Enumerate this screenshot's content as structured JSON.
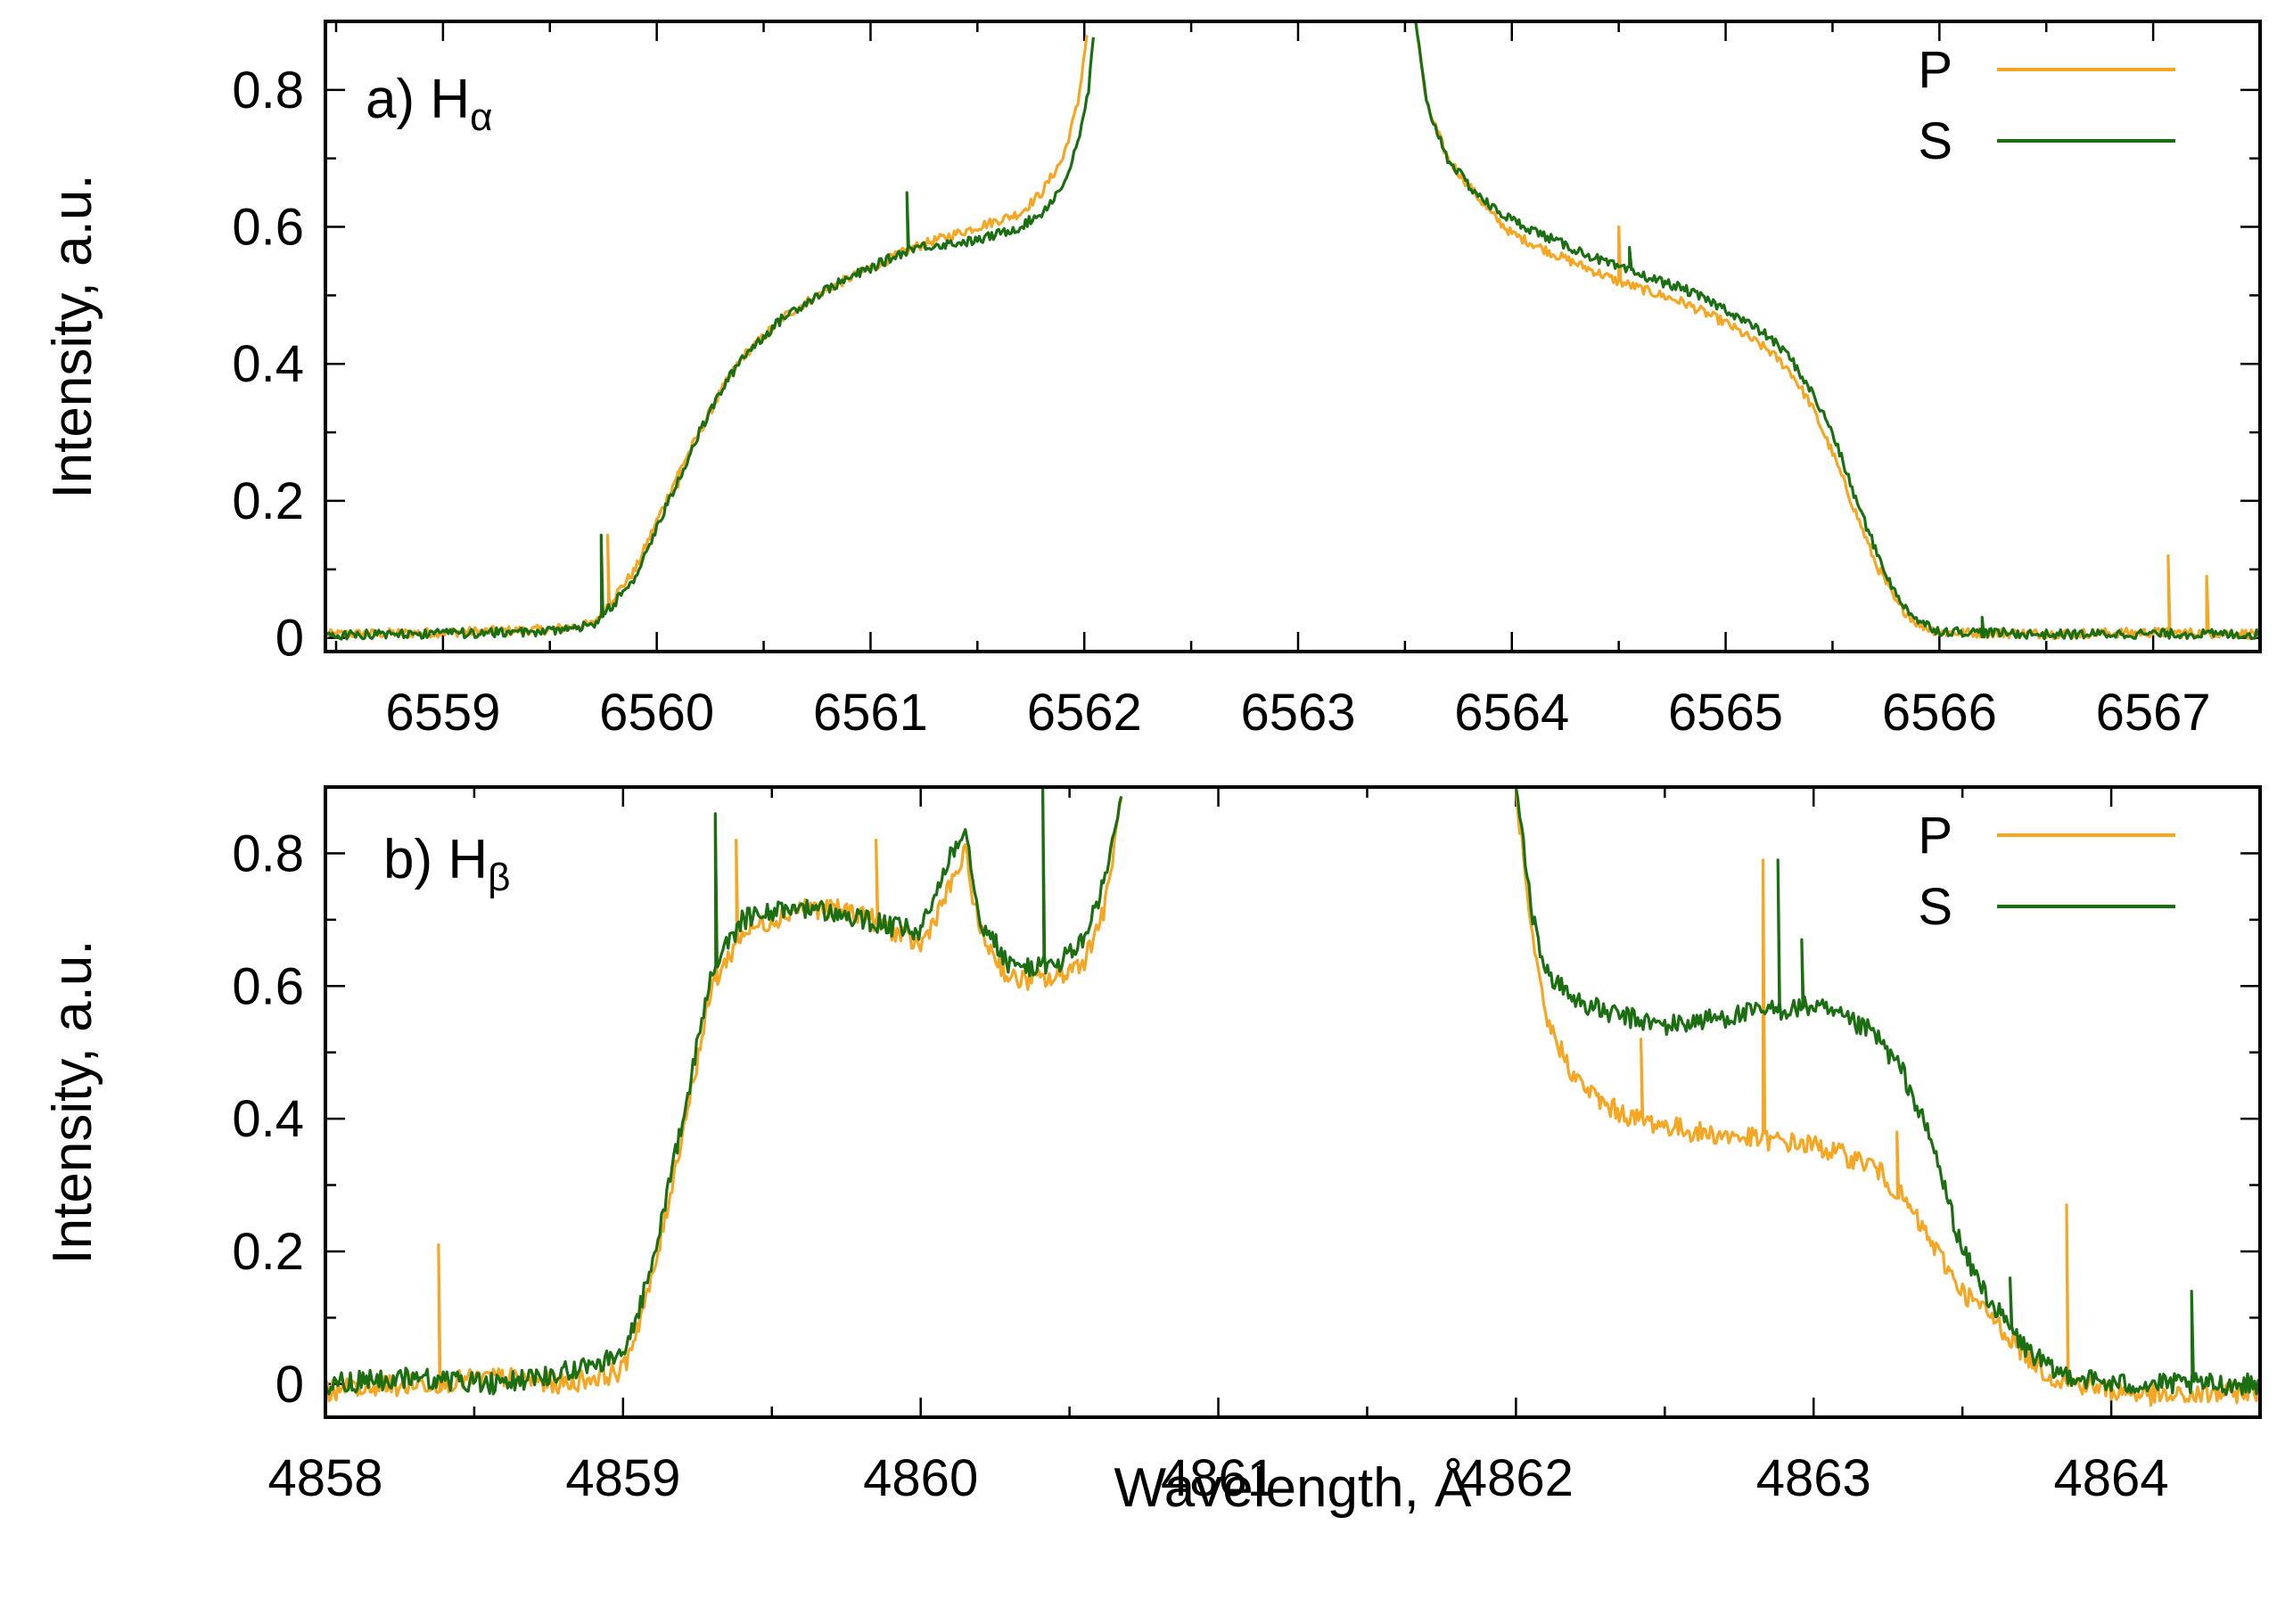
{
  "chart_data": [
    {
      "type": "line",
      "panel_label": {
        "prefix": "a) ",
        "main": "H",
        "subscript": "α"
      },
      "xlabel": "",
      "ylabel": "Intensity, a.u.",
      "xlim": [
        6558.45,
        6567.5
      ],
      "ylim": [
        -0.02,
        0.9
      ],
      "x_ticks": [
        6559,
        6560,
        6561,
        6562,
        6563,
        6564,
        6565,
        6566,
        6567
      ],
      "x_minor_step": 0.5,
      "y_ticks": [
        0,
        0.2,
        0.4,
        0.6,
        0.8
      ],
      "y_tick_labels": [
        "0",
        "0.2",
        "0.4",
        "0.6",
        "0.8"
      ],
      "y_minor_step": 0.1,
      "legend": {
        "placement": "top-right",
        "entries": [
          "P",
          "S"
        ]
      },
      "series": [
        {
          "name": "P",
          "color": "#f5a623",
          "x": [
            6558.45,
            6559.0,
            6559.5,
            6559.7,
            6559.8,
            6559.9,
            6560.0,
            6560.1,
            6560.2,
            6560.3,
            6560.4,
            6560.5,
            6560.6,
            6560.8,
            6561.0,
            6561.2,
            6561.5,
            6561.7,
            6561.8,
            6561.9,
            6561.97,
            6562.02,
            6563.55,
            6563.6,
            6563.7,
            6563.8,
            6563.9,
            6564.0,
            6564.2,
            6564.5,
            6564.8,
            6565.0,
            6565.2,
            6565.3,
            6565.4,
            6565.5,
            6565.6,
            6565.7,
            6565.8,
            6565.9,
            6566.0,
            6566.5,
            6567.0,
            6567.5
          ],
          "y": [
            0.005,
            0.008,
            0.012,
            0.02,
            0.06,
            0.1,
            0.17,
            0.24,
            0.3,
            0.36,
            0.41,
            0.44,
            0.47,
            0.51,
            0.54,
            0.57,
            0.6,
            0.62,
            0.65,
            0.7,
            0.78,
            0.9,
            0.9,
            0.78,
            0.7,
            0.66,
            0.62,
            0.59,
            0.56,
            0.52,
            0.49,
            0.46,
            0.42,
            0.39,
            0.34,
            0.27,
            0.19,
            0.11,
            0.05,
            0.02,
            0.008,
            0.006,
            0.008,
            0.006
          ],
          "spikes": [
            {
              "x": 6559.77,
              "y": 0.15
            },
            {
              "x": 6560.1,
              "y": 0.22
            },
            {
              "x": 6564.5,
              "y": 0.6
            },
            {
              "x": 6567.07,
              "y": 0.12
            },
            {
              "x": 6567.25,
              "y": 0.09
            }
          ]
        },
        {
          "name": "S",
          "color": "#1b6e11",
          "x": [
            6558.45,
            6559.0,
            6559.5,
            6559.7,
            6559.8,
            6559.9,
            6560.0,
            6560.1,
            6560.2,
            6560.3,
            6560.4,
            6560.5,
            6560.6,
            6560.8,
            6561.0,
            6561.2,
            6561.5,
            6561.7,
            6561.8,
            6561.9,
            6561.97,
            6562.02,
            6562.05,
            6563.55,
            6563.6,
            6563.7,
            6563.8,
            6563.9,
            6564.0,
            6564.2,
            6564.5,
            6564.8,
            6565.0,
            6565.2,
            6565.3,
            6565.4,
            6565.5,
            6565.6,
            6565.7,
            6565.8,
            6565.9,
            6566.0,
            6566.5,
            6567.0,
            6567.5
          ],
          "y": [
            0.005,
            0.006,
            0.01,
            0.018,
            0.05,
            0.09,
            0.16,
            0.23,
            0.3,
            0.36,
            0.41,
            0.44,
            0.47,
            0.51,
            0.54,
            0.57,
            0.58,
            0.6,
            0.62,
            0.66,
            0.72,
            0.8,
            0.9,
            0.9,
            0.78,
            0.7,
            0.66,
            0.63,
            0.61,
            0.58,
            0.54,
            0.51,
            0.48,
            0.44,
            0.41,
            0.36,
            0.3,
            0.21,
            0.13,
            0.06,
            0.025,
            0.01,
            0.005,
            0.006,
            0.005
          ],
          "spikes": [
            {
              "x": 6559.74,
              "y": 0.15
            },
            {
              "x": 6561.17,
              "y": 0.65
            },
            {
              "x": 6564.55,
              "y": 0.57
            },
            {
              "x": 6566.2,
              "y": 0.03
            }
          ]
        }
      ]
    },
    {
      "type": "line",
      "panel_label": {
        "prefix": "b) ",
        "main": "H",
        "subscript": "β"
      },
      "xlabel": "Wavelength, Å",
      "ylabel": "Intensity, a.u.",
      "xlim": [
        4858.0,
        4864.5
      ],
      "ylim": [
        -0.05,
        0.9
      ],
      "x_ticks": [
        4858,
        4859,
        4860,
        4861,
        4862,
        4863,
        4864
      ],
      "x_minor_step": 0.5,
      "y_ticks": [
        0,
        0.2,
        0.4,
        0.6,
        0.8
      ],
      "y_tick_labels": [
        "0",
        "0.2",
        "0.4",
        "0.6",
        "0.8"
      ],
      "y_minor_step": 0.1,
      "legend": {
        "placement": "top-right",
        "entries": [
          "P",
          "S"
        ]
      },
      "series": [
        {
          "name": "P",
          "color": "#f5a623",
          "x": [
            4858.0,
            4858.3,
            4858.6,
            4858.8,
            4859.0,
            4859.1,
            4859.2,
            4859.3,
            4859.4,
            4859.6,
            4859.8,
            4860.0,
            4860.1,
            4860.15,
            4860.2,
            4860.3,
            4860.45,
            4860.55,
            4860.62,
            4860.68,
            4862.0,
            4862.05,
            4862.1,
            4862.2,
            4862.3,
            4862.4,
            4862.6,
            4862.8,
            4863.0,
            4863.2,
            4863.3,
            4863.4,
            4863.5,
            4863.6,
            4863.7,
            4863.8,
            4864.0,
            4864.2,
            4864.5
          ],
          "y": [
            -0.01,
            0.0,
            0.01,
            0.0,
            0.02,
            0.16,
            0.38,
            0.6,
            0.68,
            0.72,
            0.71,
            0.66,
            0.75,
            0.8,
            0.68,
            0.61,
            0.61,
            0.64,
            0.72,
            0.9,
            0.9,
            0.68,
            0.55,
            0.46,
            0.42,
            0.4,
            0.38,
            0.37,
            0.36,
            0.33,
            0.28,
            0.21,
            0.14,
            0.1,
            0.05,
            0.01,
            -0.01,
            -0.02,
            -0.01
          ],
          "spikes": [
            {
              "x": 4858.38,
              "y": 0.21
            },
            {
              "x": 4859.31,
              "y": 0.85
            },
            {
              "x": 4859.38,
              "y": 0.82
            },
            {
              "x": 4859.85,
              "y": 0.82
            },
            {
              "x": 4862.42,
              "y": 0.52
            },
            {
              "x": 4862.83,
              "y": 0.79
            },
            {
              "x": 4863.28,
              "y": 0.38
            },
            {
              "x": 4863.85,
              "y": 0.27
            }
          ]
        },
        {
          "name": "S",
          "color": "#1b6e11",
          "x": [
            4858.0,
            4858.3,
            4858.6,
            4858.8,
            4859.0,
            4859.1,
            4859.2,
            4859.3,
            4859.4,
            4859.6,
            4859.8,
            4860.0,
            4860.1,
            4860.15,
            4860.2,
            4860.3,
            4860.45,
            4860.55,
            4860.62,
            4860.68,
            4862.0,
            4862.05,
            4862.1,
            4862.2,
            4862.3,
            4862.5,
            4862.8,
            4863.0,
            4863.2,
            4863.3,
            4863.4,
            4863.5,
            4863.6,
            4863.7,
            4863.8,
            4864.0,
            4864.2,
            4864.5
          ],
          "y": [
            0.0,
            0.01,
            0.0,
            0.02,
            0.04,
            0.18,
            0.4,
            0.62,
            0.7,
            0.72,
            0.7,
            0.68,
            0.8,
            0.84,
            0.7,
            0.63,
            0.63,
            0.67,
            0.76,
            0.9,
            0.9,
            0.72,
            0.62,
            0.58,
            0.56,
            0.54,
            0.56,
            0.57,
            0.53,
            0.47,
            0.36,
            0.2,
            0.12,
            0.06,
            0.02,
            0.0,
            0.0,
            0.0
          ],
          "spikes": [
            {
              "x": 4859.31,
              "y": 0.86
            },
            {
              "x": 4860.41,
              "y": 0.9
            },
            {
              "x": 4862.88,
              "y": 0.79
            },
            {
              "x": 4862.96,
              "y": 0.67
            },
            {
              "x": 4863.66,
              "y": 0.16
            },
            {
              "x": 4864.27,
              "y": 0.14
            }
          ]
        }
      ]
    }
  ]
}
